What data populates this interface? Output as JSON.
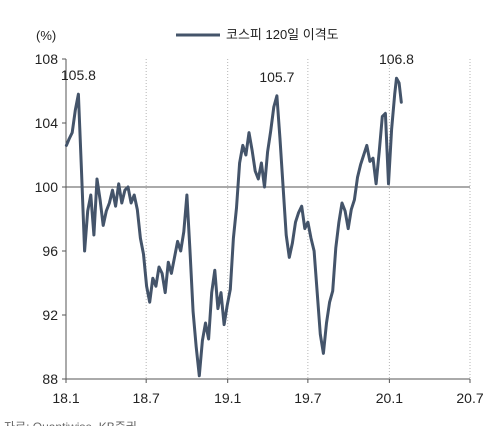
{
  "chart_data": {
    "type": "line",
    "ylabel_unit": "(%)",
    "legend_position": "top",
    "ylim": [
      88,
      108
    ],
    "yticks": [
      88,
      92,
      96,
      100,
      104,
      108
    ],
    "xlim": [
      "2018-01",
      "2020-07"
    ],
    "xticks": [
      {
        "date": "2018-01",
        "label": "18.1"
      },
      {
        "date": "2018-07",
        "label": "18.7"
      },
      {
        "date": "2019-01",
        "label": "19.1"
      },
      {
        "date": "2019-07",
        "label": "19.7"
      },
      {
        "date": "2020-01",
        "label": "20.1"
      },
      {
        "date": "2020-07",
        "label": "20.7"
      }
    ],
    "reference_line": 100,
    "grid": "vertical dotted",
    "series": [
      {
        "name": "코스피 120일 이격도",
        "color": "#44546a",
        "points": [
          [
            "2018-01-02",
            102.6
          ],
          [
            "2018-01-08",
            103.0
          ],
          [
            "2018-01-15",
            103.4
          ],
          [
            "2018-01-22",
            104.8
          ],
          [
            "2018-01-29",
            105.8
          ],
          [
            "2018-02-05",
            101.0
          ],
          [
            "2018-02-12",
            96.0
          ],
          [
            "2018-02-19",
            98.5
          ],
          [
            "2018-02-26",
            99.5
          ],
          [
            "2018-03-05",
            97.0
          ],
          [
            "2018-03-12",
            100.5
          ],
          [
            "2018-03-19",
            99.2
          ],
          [
            "2018-03-26",
            97.6
          ],
          [
            "2018-04-02",
            98.5
          ],
          [
            "2018-04-09",
            99.0
          ],
          [
            "2018-04-16",
            99.8
          ],
          [
            "2018-04-23",
            98.8
          ],
          [
            "2018-04-30",
            100.2
          ],
          [
            "2018-05-07",
            99.0
          ],
          [
            "2018-05-14",
            99.8
          ],
          [
            "2018-05-21",
            100.0
          ],
          [
            "2018-05-28",
            99.0
          ],
          [
            "2018-06-04",
            99.5
          ],
          [
            "2018-06-11",
            98.6
          ],
          [
            "2018-06-18",
            96.8
          ],
          [
            "2018-06-25",
            95.8
          ],
          [
            "2018-07-02",
            93.8
          ],
          [
            "2018-07-09",
            92.8
          ],
          [
            "2018-07-16",
            94.3
          ],
          [
            "2018-07-23",
            93.8
          ],
          [
            "2018-07-30",
            95.0
          ],
          [
            "2018-08-06",
            94.6
          ],
          [
            "2018-08-13",
            93.4
          ],
          [
            "2018-08-20",
            95.3
          ],
          [
            "2018-08-27",
            94.6
          ],
          [
            "2018-09-03",
            95.6
          ],
          [
            "2018-09-10",
            96.6
          ],
          [
            "2018-09-17",
            96.0
          ],
          [
            "2018-09-24",
            97.2
          ],
          [
            "2018-10-01",
            99.5
          ],
          [
            "2018-10-08",
            96.0
          ],
          [
            "2018-10-15",
            92.2
          ],
          [
            "2018-10-22",
            90.0
          ],
          [
            "2018-10-29",
            88.2
          ],
          [
            "2018-11-05",
            90.4
          ],
          [
            "2018-11-12",
            91.5
          ],
          [
            "2018-11-19",
            90.5
          ],
          [
            "2018-11-26",
            93.4
          ],
          [
            "2018-12-03",
            94.8
          ],
          [
            "2018-12-10",
            92.4
          ],
          [
            "2018-12-17",
            93.4
          ],
          [
            "2018-12-24",
            91.4
          ],
          [
            "2018-12-31",
            92.6
          ],
          [
            "2019-01-07",
            93.6
          ],
          [
            "2019-01-14",
            96.8
          ],
          [
            "2019-01-21",
            98.7
          ],
          [
            "2019-01-28",
            101.5
          ],
          [
            "2019-02-04",
            102.6
          ],
          [
            "2019-02-11",
            102.0
          ],
          [
            "2019-02-18",
            103.4
          ],
          [
            "2019-02-25",
            102.3
          ],
          [
            "2019-03-04",
            101.0
          ],
          [
            "2019-03-11",
            100.5
          ],
          [
            "2019-03-18",
            101.5
          ],
          [
            "2019-03-25",
            100.0
          ],
          [
            "2019-04-01",
            102.2
          ],
          [
            "2019-04-08",
            103.5
          ],
          [
            "2019-04-15",
            105.0
          ],
          [
            "2019-04-22",
            105.7
          ],
          [
            "2019-04-29",
            103.0
          ],
          [
            "2019-05-06",
            100.0
          ],
          [
            "2019-05-13",
            97.0
          ],
          [
            "2019-05-20",
            95.6
          ],
          [
            "2019-05-27",
            96.5
          ],
          [
            "2019-06-03",
            97.8
          ],
          [
            "2019-06-10",
            98.4
          ],
          [
            "2019-06-17",
            98.8
          ],
          [
            "2019-06-24",
            97.4
          ],
          [
            "2019-07-01",
            97.8
          ],
          [
            "2019-07-08",
            96.8
          ],
          [
            "2019-07-15",
            96.0
          ],
          [
            "2019-07-22",
            93.4
          ],
          [
            "2019-07-29",
            90.8
          ],
          [
            "2019-08-05",
            89.6
          ],
          [
            "2019-08-12",
            91.5
          ],
          [
            "2019-08-19",
            92.8
          ],
          [
            "2019-08-26",
            93.5
          ],
          [
            "2019-09-02",
            96.2
          ],
          [
            "2019-09-09",
            97.8
          ],
          [
            "2019-09-16",
            99.0
          ],
          [
            "2019-09-23",
            98.5
          ],
          [
            "2019-09-30",
            97.4
          ],
          [
            "2019-10-07",
            98.6
          ],
          [
            "2019-10-14",
            99.2
          ],
          [
            "2019-10-21",
            100.6
          ],
          [
            "2019-10-28",
            101.4
          ],
          [
            "2019-11-04",
            102.0
          ],
          [
            "2019-11-11",
            102.6
          ],
          [
            "2019-11-18",
            101.6
          ],
          [
            "2019-11-25",
            101.8
          ],
          [
            "2019-12-02",
            100.2
          ],
          [
            "2019-12-09",
            102.2
          ],
          [
            "2019-12-16",
            104.4
          ],
          [
            "2019-12-23",
            104.6
          ],
          [
            "2019-12-30",
            100.2
          ],
          [
            "2020-01-06",
            103.6
          ],
          [
            "2020-01-13",
            105.8
          ],
          [
            "2020-01-17",
            106.8
          ],
          [
            "2020-01-23",
            106.5
          ],
          [
            "2020-01-28",
            105.3
          ]
        ]
      }
    ],
    "annotations": [
      {
        "date": "2018-01-29",
        "value": 105.8,
        "label": "105.8"
      },
      {
        "date": "2019-04-22",
        "value": 105.7,
        "label": "105.7"
      },
      {
        "date": "2020-01-17",
        "value": 106.8,
        "label": "106.8"
      }
    ],
    "source": "자료: Quantiwise, KB증권"
  }
}
